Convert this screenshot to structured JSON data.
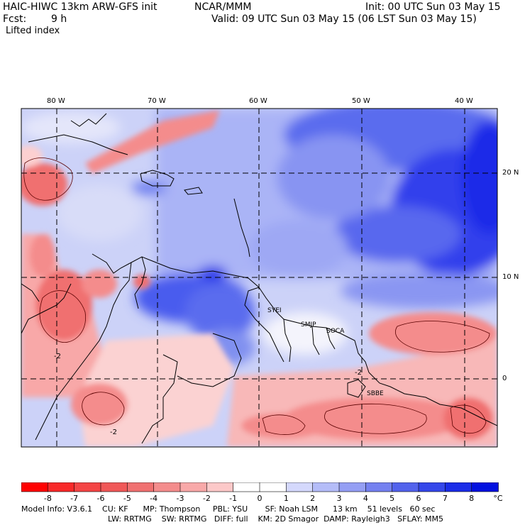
{
  "header": {
    "title": "HAIC-HIWC 13km ARW-GFS init",
    "org": "NCAR/MMM",
    "init": "Init: 00 UTC Sun 03 May 15",
    "fcst_label": "Fcst:",
    "fcst_value": "9 h",
    "valid": "Valid: 09 UTC Sun 03 May 15 (06 LST Sun 03 May 15)",
    "field": "Lifted index"
  },
  "map": {
    "lon_labels": [
      "80 W",
      "70 W",
      "60 W",
      "50 W",
      "40 W"
    ],
    "lat_labels": [
      "20 N",
      "10 N",
      "0"
    ],
    "stations": [
      "SYEI",
      "SMJP",
      "SOCA",
      "SBBE"
    ],
    "contour_labels": [
      "-2",
      "-2",
      "-2"
    ],
    "colors": {
      "red": "#f07070",
      "pink": "#f8c8c8",
      "blue": "#3a4ef0",
      "lightblue": "#c0c8f8",
      "station": "#e000e0"
    }
  },
  "colorbar": {
    "labels": [
      "-8",
      "-7",
      "-6",
      "-5",
      "-4",
      "-3",
      "-2",
      "-1",
      "0",
      "1",
      "2",
      "3",
      "4",
      "5",
      "6",
      "7",
      "8"
    ],
    "unit": "°C",
    "colors": [
      "#ff0000",
      "#f82828",
      "#f44444",
      "#f05858",
      "#f07070",
      "#f48c8c",
      "#f8a8a8",
      "#fcc8c8",
      "#ffffff",
      "#ffffff",
      "#d4d8fc",
      "#b4bcf8",
      "#949ef4",
      "#7480f0",
      "#5262ec",
      "#3446ea",
      "#1a2ce8",
      "#0010e0"
    ]
  },
  "footer": {
    "line1": "Model Info: V3.6.1    CU: KF      MP: Thompson     PBL: YSU       SF: Noah LSM      13 km    51 levels   60 sec",
    "line2": "LW: RRTMG    SW: RRTMG   DIFF: full    KM: 2D Smagor  DAMP: Rayleigh3   SFLAY: MM5"
  }
}
